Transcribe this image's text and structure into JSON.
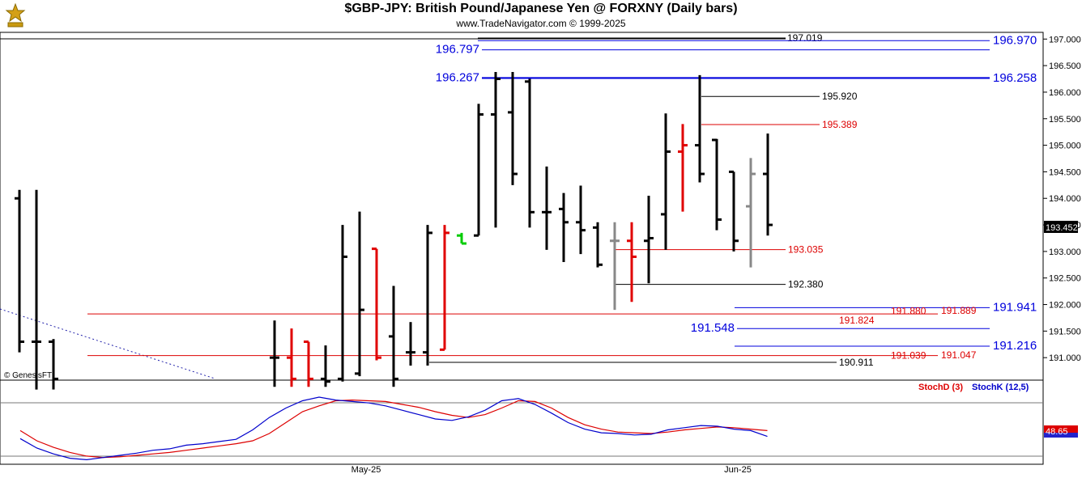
{
  "header": {
    "title": "$GBP-JPY:  British Pound/Japanese Yen @ FORXNY  (Daily bars)",
    "subtitle": "www.TradeNavigator.com © 1999-2025",
    "logo_icon": "gold-trophy-logo"
  },
  "colors": {
    "bull": "#000000",
    "bear": "#e00000",
    "neutral": "#888888",
    "line_blue": "#0000dd",
    "line_red": "#dd0000",
    "stochD": "#dd0000",
    "stochK": "#0000cc"
  },
  "chart_data": [
    {
      "type": "candlestick",
      "title": "$GBP-JPY:  British Pound/Japanese Yen @ FORXNY  (Daily bars)",
      "ylim": [
        190.6,
        197.1
      ],
      "y_ticks": [
        "197.000",
        "196.500",
        "196.000",
        "195.500",
        "195.000",
        "194.500",
        "194.000",
        "193.500",
        "193.000",
        "192.500",
        "192.000",
        "191.500",
        "191.000"
      ],
      "current_price": "193.452",
      "watermark": "© GenesisFT",
      "bars": [
        {
          "x": 1,
          "h": 194.16,
          "l": 191.1,
          "o": 194.0,
          "c": 191.3,
          "col": "bull"
        },
        {
          "x": 2,
          "h": 194.16,
          "l": 190.4,
          "o": 191.3,
          "c": 191.3,
          "col": "bull"
        },
        {
          "x": 3,
          "h": 191.35,
          "l": 190.4,
          "o": 191.3,
          "c": 190.6,
          "col": "bull"
        },
        {
          "x": 16,
          "h": 191.7,
          "l": 190.45,
          "o": 191.0,
          "c": 191.0,
          "col": "bull"
        },
        {
          "x": 17,
          "h": 191.55,
          "l": 190.45,
          "o": 191.0,
          "c": 190.6,
          "col": "bear"
        },
        {
          "x": 18,
          "h": 191.3,
          "l": 190.45,
          "o": 191.3,
          "c": 190.6,
          "col": "bear"
        },
        {
          "x": 19,
          "h": 191.23,
          "l": 190.45,
          "o": 190.6,
          "c": 190.55,
          "col": "bull"
        },
        {
          "x": 20,
          "h": 193.5,
          "l": 190.55,
          "o": 190.6,
          "c": 192.9,
          "col": "bull"
        },
        {
          "x": 21,
          "h": 193.75,
          "l": 190.65,
          "o": 190.7,
          "c": 191.9,
          "col": "bull"
        },
        {
          "x": 22,
          "h": 193.05,
          "l": 190.95,
          "o": 193.05,
          "c": 191.0,
          "col": "bear"
        },
        {
          "x": 23,
          "h": 192.35,
          "l": 190.45,
          "o": 191.4,
          "c": 190.6,
          "col": "bull"
        },
        {
          "x": 24,
          "h": 191.67,
          "l": 190.85,
          "o": 191.1,
          "c": 191.1,
          "col": "bull"
        },
        {
          "x": 25,
          "h": 193.5,
          "l": 190.85,
          "o": 191.1,
          "c": 193.35,
          "col": "bull"
        },
        {
          "x": 26,
          "h": 193.5,
          "l": 191.15,
          "o": 191.15,
          "c": 193.35,
          "col": "bear"
        },
        {
          "x": 27,
          "h": 193.35,
          "l": 193.15,
          "o": 193.3,
          "c": 193.15,
          "col": "green"
        },
        {
          "x": 28,
          "h": 195.78,
          "l": 193.3,
          "o": 193.3,
          "c": 195.58,
          "col": "bull"
        },
        {
          "x": 29,
          "h": 196.38,
          "l": 193.45,
          "o": 195.58,
          "c": 196.25,
          "col": "bull"
        },
        {
          "x": 30,
          "h": 196.38,
          "l": 194.25,
          "o": 195.62,
          "c": 194.46,
          "col": "bull"
        },
        {
          "x": 31,
          "h": 196.25,
          "l": 193.45,
          "o": 196.2,
          "c": 193.74,
          "col": "bull"
        },
        {
          "x": 32,
          "h": 194.6,
          "l": 193.03,
          "o": 193.74,
          "c": 193.74,
          "col": "bull"
        },
        {
          "x": 33,
          "h": 194.1,
          "l": 192.8,
          "o": 193.8,
          "c": 193.55,
          "col": "bull"
        },
        {
          "x": 34,
          "h": 194.24,
          "l": 192.95,
          "o": 193.55,
          "c": 193.4,
          "col": "bull"
        },
        {
          "x": 35,
          "h": 193.55,
          "l": 192.7,
          "o": 193.45,
          "c": 192.75,
          "col": "bull"
        },
        {
          "x": 36,
          "h": 193.55,
          "l": 191.9,
          "o": 193.2,
          "c": 193.2,
          "col": "neutral"
        },
        {
          "x": 37,
          "h": 193.55,
          "l": 192.05,
          "o": 193.2,
          "c": 192.9,
          "col": "bear"
        },
        {
          "x": 38,
          "h": 194.05,
          "l": 192.4,
          "o": 193.2,
          "c": 193.25,
          "col": "bull"
        },
        {
          "x": 39,
          "h": 195.6,
          "l": 193.03,
          "o": 193.7,
          "c": 194.88,
          "col": "bull"
        },
        {
          "x": 40,
          "h": 195.4,
          "l": 193.75,
          "o": 194.88,
          "c": 195.0,
          "col": "bear"
        },
        {
          "x": 41,
          "h": 196.32,
          "l": 194.3,
          "o": 195.0,
          "c": 194.46,
          "col": "bull"
        },
        {
          "x": 42,
          "h": 195.12,
          "l": 193.4,
          "o": 195.1,
          "c": 193.6,
          "col": "bull"
        },
        {
          "x": 43,
          "h": 194.5,
          "l": 193.0,
          "o": 194.5,
          "c": 193.2,
          "col": "bull"
        },
        {
          "x": 44,
          "h": 194.76,
          "l": 192.7,
          "o": 193.85,
          "c": 194.46,
          "col": "neutral"
        },
        {
          "x": 45,
          "h": 195.22,
          "l": 193.3,
          "o": 194.46,
          "c": 193.5,
          "col": "bull"
        }
      ],
      "levels": [
        {
          "label": "197.019",
          "value": 197.019,
          "color": "black"
        },
        {
          "label": "196.970",
          "value": 196.97,
          "color": "blue"
        },
        {
          "label": "196.797",
          "value": 196.797,
          "color": "blue"
        },
        {
          "label": "196.267",
          "value": 196.267,
          "color": "blue"
        },
        {
          "label": "196.258",
          "value": 196.258,
          "color": "blue"
        },
        {
          "label": "195.920",
          "value": 195.92,
          "color": "black"
        },
        {
          "label": "195.389",
          "value": 195.389,
          "color": "red"
        },
        {
          "label": "193.035",
          "value": 193.035,
          "color": "red"
        },
        {
          "label": "192.380",
          "value": 192.38,
          "color": "black"
        },
        {
          "label": "191.941",
          "value": 191.941,
          "color": "blue"
        },
        {
          "label": "191.880",
          "value": 191.88,
          "color": "red"
        },
        {
          "label": "191.889",
          "value": 191.889,
          "color": "red"
        },
        {
          "label": "191.824",
          "value": 191.824,
          "color": "red"
        },
        {
          "label": "191.548",
          "value": 191.548,
          "color": "blue"
        },
        {
          "label": "191.216",
          "value": 191.216,
          "color": "blue"
        },
        {
          "label": "191.039",
          "value": 191.039,
          "color": "red"
        },
        {
          "label": "191.047",
          "value": 191.047,
          "color": "red"
        },
        {
          "label": "190.911",
          "value": 190.911,
          "color": "black"
        }
      ]
    },
    {
      "type": "line",
      "title": "",
      "legend": [
        "StochD (3)",
        "StochK (12,5)"
      ],
      "current_value": "48.65",
      "x_labels": [
        "May-25",
        "Jun-25"
      ],
      "series": [
        {
          "name": "StochD (3)",
          "values": [
            44,
            30,
            21,
            14,
            9,
            7,
            8,
            10,
            12,
            14,
            17,
            20,
            23,
            26,
            30,
            40,
            55,
            70,
            78,
            85,
            86,
            85,
            84,
            80,
            76,
            70,
            65,
            62,
            66,
            75,
            85,
            84,
            75,
            62,
            52,
            46,
            42,
            41,
            40,
            42,
            45,
            47,
            49,
            48,
            46,
            44
          ]
        },
        {
          "name": "StochK (12,5)",
          "values": [
            33,
            20,
            12,
            6,
            4,
            7,
            10,
            13,
            17,
            19,
            24,
            26,
            29,
            32,
            45,
            62,
            75,
            85,
            90,
            86,
            84,
            82,
            78,
            72,
            66,
            60,
            58,
            63,
            72,
            85,
            88,
            80,
            68,
            55,
            46,
            41,
            40,
            38,
            39,
            45,
            48,
            51,
            50,
            46,
            44,
            36
          ]
        }
      ]
    }
  ]
}
